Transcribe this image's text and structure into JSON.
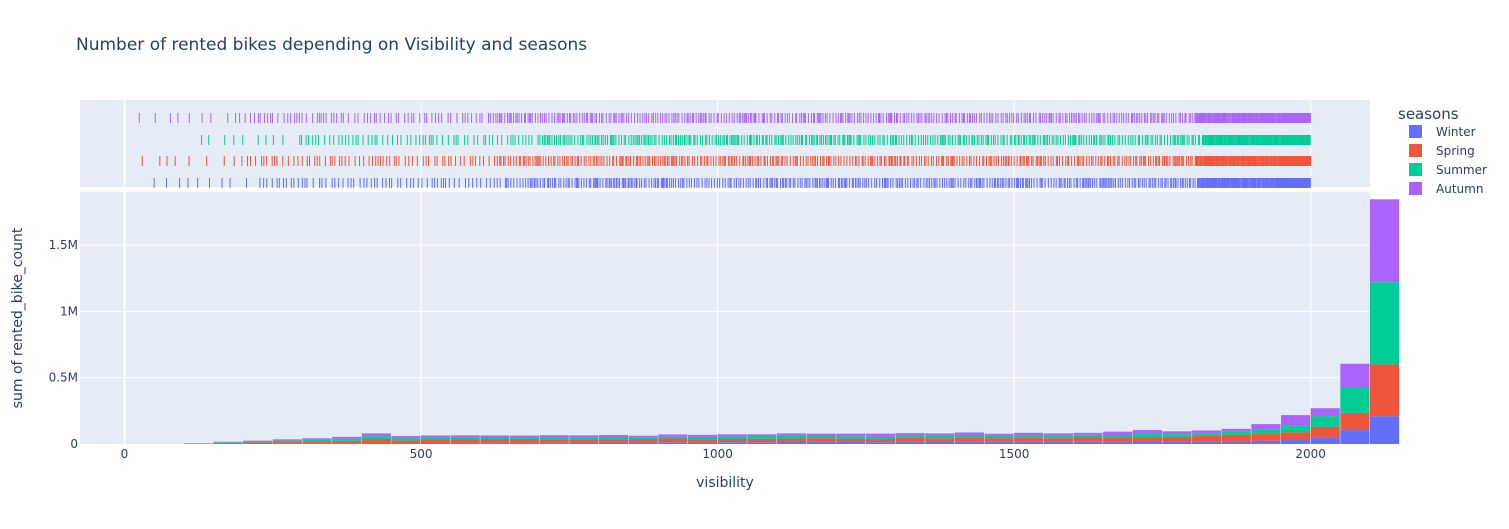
{
  "chart_data": {
    "type": "bar",
    "subtype": "stacked histogram with marginal rug plot",
    "title": "Number of rented bikes depending on Visibility and seasons",
    "xlabel": "visibility",
    "ylabel": "sum of rented_bike_count",
    "xlim": [
      -75,
      2100
    ],
    "ylim": [
      0,
      1900000
    ],
    "x_ticks": [
      0,
      500,
      1000,
      1500,
      2000
    ],
    "x_tick_labels": [
      "0",
      "500",
      "1000",
      "1500",
      "2000"
    ],
    "y_ticks": [
      0,
      500000,
      1000000,
      1500000
    ],
    "y_tick_labels": [
      "0",
      "0.5M",
      "1M",
      "1.5M"
    ],
    "bin_width": 50,
    "bin_start": 0,
    "grid": true,
    "barmode": "stack",
    "legend": {
      "title": "seasons",
      "position": "top-right"
    },
    "series": [
      {
        "name": "Winter",
        "color": "#636efa",
        "rug_range": [
          50,
          2000
        ],
        "values": [
          0,
          0,
          2000,
          3000,
          4000,
          5000,
          5000,
          6000,
          8000,
          7000,
          8000,
          9000,
          10000,
          9000,
          10000,
          11000,
          12000,
          12000,
          13000,
          12000,
          14000,
          13000,
          15000,
          16000,
          15000,
          14000,
          16000,
          15000,
          17000,
          16000,
          17000,
          18000,
          17000,
          18000,
          19000,
          20000,
          20000,
          22000,
          25000,
          30000,
          50000,
          105000,
          210000
        ]
      },
      {
        "name": "Spring",
        "color": "#ef553b",
        "rug_range": [
          30,
          2000
        ],
        "values": [
          0,
          0,
          1000,
          5000,
          8000,
          12000,
          15000,
          18000,
          30000,
          20000,
          22000,
          25000,
          24000,
          25000,
          25000,
          25000,
          25000,
          22000,
          28000,
          25000,
          24000,
          27000,
          26000,
          28000,
          25000,
          24000,
          32000,
          28000,
          34000,
          28000,
          30000,
          26000,
          32000,
          28000,
          30000,
          34000,
          40000,
          48000,
          50000,
          58000,
          80000,
          130000,
          390000
        ]
      },
      {
        "name": "Summer",
        "color": "#00cc96",
        "rug_range": [
          130,
          2000
        ],
        "values": [
          0,
          0,
          2000,
          4000,
          8000,
          10000,
          13000,
          16000,
          20000,
          17000,
          18000,
          16000,
          15000,
          16000,
          16000,
          14000,
          16000,
          14000,
          14000,
          16000,
          18000,
          20000,
          22000,
          20000,
          18000,
          16000,
          20000,
          18000,
          18000,
          18000,
          20000,
          18000,
          20000,
          22000,
          26000,
          20000,
          20000,
          22000,
          35000,
          50000,
          80000,
          190000,
          620000
        ]
      },
      {
        "name": "Autumn",
        "color": "#ab63fa",
        "rug_range": [
          25,
          2000
        ],
        "values": [
          0,
          0,
          1000,
          5000,
          5000,
          8000,
          10000,
          14000,
          22000,
          16000,
          16000,
          15000,
          15000,
          13000,
          15000,
          15000,
          15000,
          14000,
          17000,
          16000,
          17000,
          13000,
          17000,
          14000,
          20000,
          24000,
          14000,
          19000,
          18000,
          15000,
          17000,
          18000,
          15000,
          25000,
          30000,
          22000,
          22000,
          22000,
          40000,
          80000,
          60000,
          180000,
          625000
        ]
      }
    ]
  }
}
